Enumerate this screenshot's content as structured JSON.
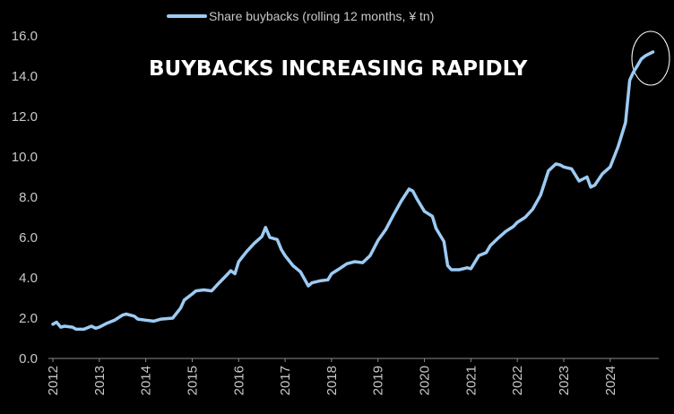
{
  "colors": {
    "background": "#000000",
    "line": "#9ccbf4",
    "text": "#c8c8c8",
    "annotation": "#ffffff"
  },
  "legend": {
    "label": "Share buybacks (rolling 12 months, ¥ tn)"
  },
  "annotation": {
    "text": "BUYBACKS INCREASING RAPIDLY"
  },
  "chart_data": {
    "type": "line",
    "title": "",
    "xlabel": "",
    "ylabel": "",
    "legend_position": "top-center",
    "grid": false,
    "xlim": [
      2012,
      2025
    ],
    "ylim": [
      0,
      16
    ],
    "x_ticks": [
      "2012",
      "2013",
      "2014",
      "2015",
      "2016",
      "2017",
      "2018",
      "2019",
      "2020",
      "2021",
      "2022",
      "2023",
      "2024"
    ],
    "y_ticks": [
      "0.0",
      "2.0",
      "4.0",
      "6.0",
      "8.0",
      "10.0",
      "12.0",
      "14.0",
      "16.0"
    ],
    "series": [
      {
        "name": "Share buybacks (rolling 12 months, ¥ tn)",
        "x": [
          2012.0,
          2012.08,
          2012.17,
          2012.25,
          2012.42,
          2012.5,
          2012.67,
          2012.83,
          2012.92,
          2013.0,
          2013.17,
          2013.33,
          2013.5,
          2013.58,
          2013.75,
          2013.83,
          2014.0,
          2014.17,
          2014.33,
          2014.58,
          2014.75,
          2014.83,
          2015.0,
          2015.08,
          2015.25,
          2015.42,
          2015.58,
          2015.75,
          2015.83,
          2015.92,
          2016.0,
          2016.17,
          2016.33,
          2016.5,
          2016.58,
          2016.67,
          2016.83,
          2016.92,
          2017.0,
          2017.17,
          2017.33,
          2017.5,
          2017.58,
          2017.75,
          2017.92,
          2018.0,
          2018.17,
          2018.33,
          2018.5,
          2018.67,
          2018.83,
          2019.0,
          2019.17,
          2019.33,
          2019.5,
          2019.67,
          2019.75,
          2019.83,
          2020.0,
          2020.17,
          2020.25,
          2020.42,
          2020.5,
          2020.58,
          2020.75,
          2020.92,
          2021.0,
          2021.17,
          2021.33,
          2021.42,
          2021.58,
          2021.75,
          2021.92,
          2022.0,
          2022.17,
          2022.33,
          2022.5,
          2022.67,
          2022.83,
          2022.92,
          2023.0,
          2023.17,
          2023.33,
          2023.5,
          2023.58,
          2023.67,
          2023.83,
          2024.0,
          2024.17,
          2024.33,
          2024.42,
          2024.5,
          2024.58,
          2024.67,
          2024.75,
          2024.83,
          2024.92
        ],
        "values": [
          1.7,
          1.8,
          1.55,
          1.6,
          1.55,
          1.45,
          1.45,
          1.6,
          1.5,
          1.55,
          1.75,
          1.9,
          2.15,
          2.2,
          2.1,
          1.95,
          1.9,
          1.85,
          1.95,
          2.0,
          2.5,
          2.9,
          3.2,
          3.35,
          3.4,
          3.35,
          3.75,
          4.15,
          4.35,
          4.2,
          4.8,
          5.3,
          5.7,
          6.05,
          6.5,
          6.0,
          5.9,
          5.4,
          5.1,
          4.6,
          4.3,
          3.6,
          3.75,
          3.85,
          3.9,
          4.2,
          4.45,
          4.7,
          4.8,
          4.75,
          5.1,
          5.85,
          6.4,
          7.1,
          7.8,
          8.4,
          8.3,
          7.95,
          7.3,
          7.05,
          6.45,
          5.8,
          4.6,
          4.4,
          4.4,
          4.5,
          4.45,
          5.1,
          5.25,
          5.6,
          5.95,
          6.3,
          6.55,
          6.75,
          7.0,
          7.4,
          8.1,
          9.3,
          9.65,
          9.6,
          9.5,
          9.4,
          8.8,
          9.0,
          8.5,
          8.6,
          9.15,
          9.5,
          10.5,
          11.7,
          13.8,
          14.2,
          14.5,
          14.85,
          15.0,
          15.1,
          15.2
        ]
      }
    ]
  }
}
